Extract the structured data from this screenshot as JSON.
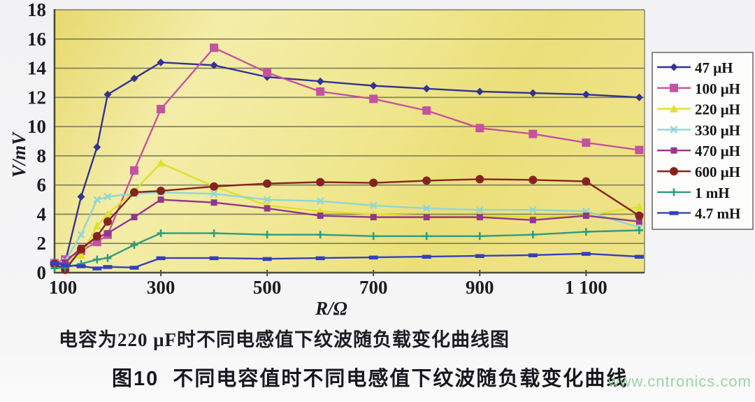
{
  "caption": "电容为220 μF时不同电感值下纹波随负载变化曲线图",
  "figure_title": "图10  不同电容值时不同电感值下纹波随负载变化曲线",
  "watermark": "www.cntronics.com",
  "chart_data": {
    "type": "line",
    "title": "",
    "xlabel": "R/Ω",
    "ylabel": "V/mV",
    "xlim": [
      100,
      1210
    ],
    "ylim": [
      0,
      18
    ],
    "grid": "horizontal",
    "legend_position": "right",
    "plot_bg_color": "#eee084",
    "gridline_color": "#7d7d58",
    "x_ticks": [
      100,
      300,
      500,
      700,
      900,
      1100
    ],
    "x_tick_labels": [
      "100",
      "300",
      "500",
      "700",
      "900",
      "1 100"
    ],
    "y_ticks": [
      0,
      2,
      4,
      6,
      8,
      10,
      12,
      14,
      16,
      18
    ],
    "x": [
      100,
      120,
      150,
      180,
      200,
      250,
      300,
      400,
      500,
      600,
      700,
      800,
      900,
      1000,
      1100,
      1200
    ],
    "series": [
      {
        "name": "47 μH",
        "color": "#343392",
        "marker": "diamond",
        "values": [
          0.6,
          0.7,
          5.2,
          8.6,
          12.2,
          13.3,
          14.4,
          14.2,
          13.4,
          13.1,
          12.8,
          12.6,
          12.4,
          12.3,
          12.2,
          12.0
        ]
      },
      {
        "name": "100 μH",
        "color": "#c4539f",
        "marker": "square",
        "values": [
          0.65,
          0.9,
          1.5,
          2.1,
          2.6,
          7.0,
          11.2,
          15.4,
          13.7,
          12.4,
          11.9,
          11.1,
          9.9,
          9.5,
          8.9,
          8.4
        ]
      },
      {
        "name": "220 μH",
        "color": "#dfe02a",
        "marker": "triangle",
        "values": [
          0.6,
          0.7,
          1.2,
          3.2,
          4.0,
          5.6,
          7.5,
          5.9,
          4.6,
          4.2,
          4.0,
          3.9,
          3.9,
          3.8,
          3.9,
          4.5
        ]
      },
      {
        "name": "330 μH",
        "color": "#8ed7d3",
        "marker": "x",
        "values": [
          0.6,
          0.8,
          2.6,
          5.0,
          5.2,
          5.4,
          5.5,
          5.4,
          5.0,
          4.9,
          4.6,
          4.4,
          4.3,
          4.3,
          4.2,
          3.1
        ]
      },
      {
        "name": "470 μH",
        "color": "#93368f",
        "marker": "square",
        "values": [
          0.6,
          0.7,
          1.7,
          2.4,
          2.7,
          3.8,
          5.0,
          4.8,
          4.4,
          3.9,
          3.8,
          3.8,
          3.8,
          3.6,
          3.9,
          3.5
        ]
      },
      {
        "name": "600 μH",
        "color": "#84241e",
        "marker": "circle",
        "values": [
          0.6,
          0.2,
          1.6,
          2.5,
          3.5,
          5.5,
          5.6,
          5.9,
          6.1,
          6.2,
          6.15,
          6.3,
          6.4,
          6.35,
          6.25,
          3.9
        ]
      },
      {
        "name": "1 mH",
        "color": "#2d9c80",
        "marker": "plus",
        "values": [
          0.3,
          0.35,
          0.6,
          0.9,
          1.0,
          1.9,
          2.7,
          2.7,
          2.6,
          2.6,
          2.5,
          2.5,
          2.5,
          2.6,
          2.8,
          2.9
        ]
      },
      {
        "name": "4.7 mH",
        "color": "#3340bd",
        "marker": "dash",
        "values": [
          0.65,
          0.5,
          0.45,
          0.3,
          0.4,
          0.35,
          1.0,
          1.0,
          0.95,
          1.0,
          1.05,
          1.1,
          1.15,
          1.2,
          1.3,
          1.1
        ]
      }
    ]
  }
}
